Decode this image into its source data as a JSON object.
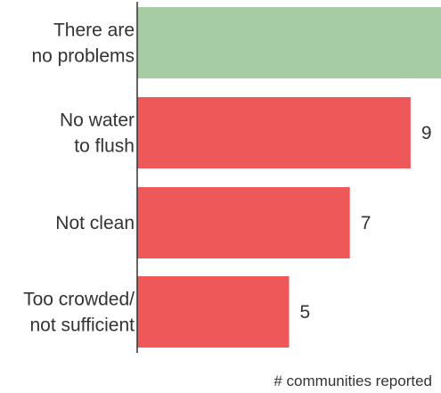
{
  "chart_data": {
    "type": "bar",
    "orientation": "horizontal",
    "categories": [
      [
        "There are",
        "no problems"
      ],
      [
        "No water",
        "to flush"
      ],
      [
        "Not clean"
      ],
      [
        "Too crowded/",
        "not sufficient"
      ]
    ],
    "values": [
      null,
      9,
      7,
      5
    ],
    "value_labels": [
      "",
      "9",
      "7",
      "5"
    ],
    "colors": [
      "#a5cca3",
      "#ef5858",
      "#ef5858",
      "#ef5858"
    ],
    "xlabel": "# communities reported",
    "ylabel": "",
    "xlim": [
      0,
      10
    ]
  }
}
